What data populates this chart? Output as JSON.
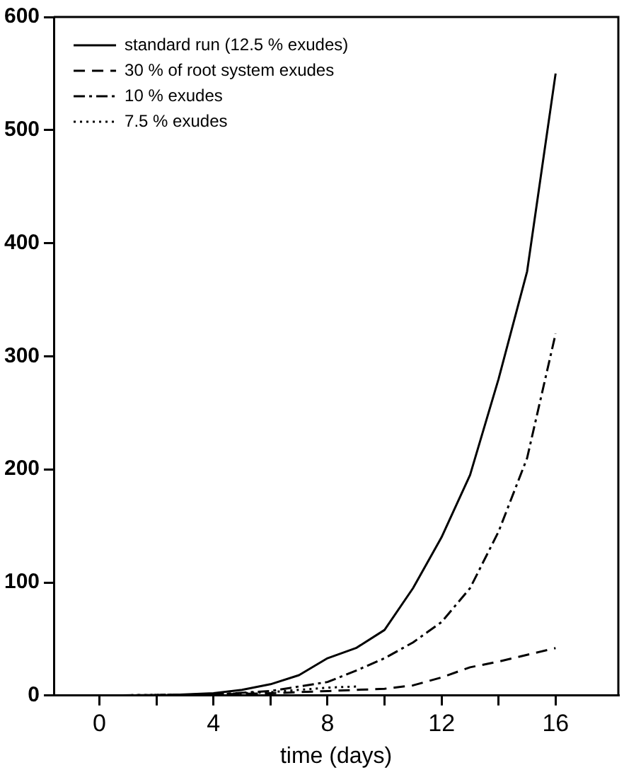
{
  "chart_data": {
    "type": "line",
    "xlabel": "time (days)",
    "xlim": [
      -1.6,
      18.2
    ],
    "ylim": [
      0,
      600
    ],
    "xticks": [
      0,
      {
        "value": 2,
        "label": null
      },
      4,
      {
        "value": 6,
        "label": null
      },
      8,
      {
        "value": 10,
        "label": null
      },
      12,
      {
        "value": 14,
        "label": null
      },
      16
    ],
    "yticks": [
      0,
      100,
      200,
      300,
      400,
      500,
      600
    ],
    "grid": false,
    "legend": "top left",
    "marker": "none",
    "series": [
      {
        "name": "standard run (12.5 % exudes)",
        "color": "#000000",
        "line_style": "solid",
        "x": [
          0,
          2,
          4,
          5,
          6,
          7,
          8,
          9,
          10,
          11,
          12,
          13,
          14,
          15,
          16
        ],
        "values": [
          0,
          0,
          2,
          5,
          10,
          18,
          33,
          42,
          58,
          95,
          140,
          195,
          280,
          375,
          550
        ]
      },
      {
        "name": "30 % of root system exudes",
        "color": "#000000",
        "line_style": "dashed",
        "x": [
          0,
          4,
          6,
          8,
          10,
          11,
          12,
          13,
          14,
          15,
          16
        ],
        "values": [
          0,
          1,
          2,
          4,
          6,
          9,
          16,
          25,
          30,
          36,
          42
        ]
      },
      {
        "name": "10 % exudes",
        "color": "#000000",
        "line_style": "dashdot",
        "x": [
          0,
          4,
          6,
          8,
          9,
          10,
          11,
          12,
          13,
          14,
          15,
          16
        ],
        "values": [
          0,
          1,
          4,
          12,
          22,
          33,
          47,
          65,
          95,
          145,
          210,
          320
        ]
      },
      {
        "name": "7.5 % exudes",
        "color": "#000000",
        "line_style": "dotted",
        "x": [
          0,
          4,
          6,
          7,
          8,
          9
        ],
        "values": [
          0,
          1,
          3,
          5,
          7,
          8
        ]
      }
    ]
  }
}
